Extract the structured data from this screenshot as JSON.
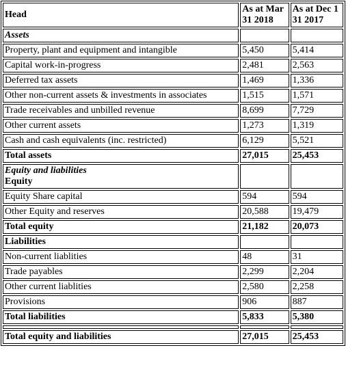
{
  "table": {
    "header": {
      "head": "Head",
      "col1": "As at Mar 31 2018",
      "col2": "As at Dec 1 31 2017"
    },
    "assets_heading": "Assets",
    "assets": [
      {
        "label": "Property, plant and equipment and intangible",
        "v1": "5,450",
        "v2": "5,414"
      },
      {
        "label": "Capital work-in-progress",
        "v1": "2,481",
        "v2": "2,563"
      },
      {
        "label": "Deferred tax assets",
        "v1": "1,469",
        "v2": "1,336"
      },
      {
        "label": "Other non-current assets & investments in associates",
        "v1": "1,515",
        "v2": "1,571"
      },
      {
        "label": "Trade receivables and unbilled revenue",
        "v1": "8,699",
        "v2": "7,729"
      },
      {
        "label": "Other current assets",
        "v1": "1,273",
        "v2": "1,319"
      },
      {
        "label": "Cash and cash equivalents (inc. restricted)",
        "v1": "6,129",
        "v2": "5,521"
      }
    ],
    "total_assets": {
      "label": "Total assets",
      "v1": "27,015",
      "v2": "25,453"
    },
    "eq_liab_heading": "Equity and liabilities",
    "equity_heading": "Equity",
    "equity": [
      {
        "label": "Equity Share capital",
        "v1": "594",
        "v2": "594"
      },
      {
        "label": "Other Equity and reserves",
        "v1": "20,588",
        "v2": "19,479"
      }
    ],
    "total_equity": {
      "label": "Total equity",
      "v1": "21,182",
      "v2": "20,073"
    },
    "liabilities_heading": "Liabilities",
    "liabilities": [
      {
        "label": "Non-current liablities",
        "v1": "48",
        "v2": "31"
      },
      {
        "label": "Trade payables",
        "v1": "2,299",
        "v2": "2,204"
      },
      {
        "label": "Other current liablities",
        "v1": "2,580",
        "v2": "2,258"
      },
      {
        "label": "Provisions",
        "v1": "906",
        "v2": "887"
      }
    ],
    "total_liabilities": {
      "label": "Total liabilities",
      "v1": "5,833",
      "v2": "5,380"
    },
    "total_eq_liab": {
      "label": "Total equity and liabilities",
      "v1": "27,015",
      "v2": "25,453"
    }
  }
}
